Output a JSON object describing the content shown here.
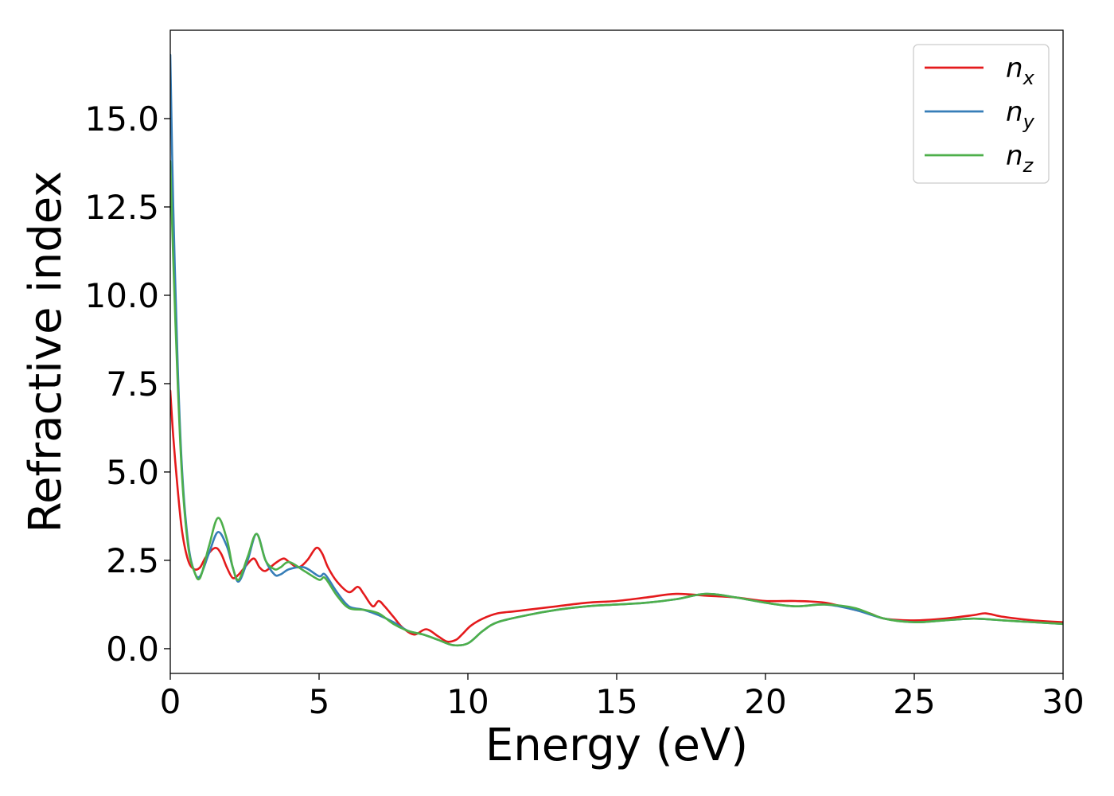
{
  "chart_data": {
    "type": "line",
    "xlabel": "Energy (eV)",
    "ylabel": "Refractive index",
    "xlim": [
      0,
      30
    ],
    "ylim": [
      -0.7,
      17.5
    ],
    "xticks": [
      0,
      5,
      10,
      15,
      20,
      25,
      30
    ],
    "xtick_labels": [
      "0",
      "5",
      "10",
      "15",
      "20",
      "25",
      "30"
    ],
    "yticks": [
      0,
      2.5,
      5,
      7.5,
      10,
      12.5,
      15
    ],
    "ytick_labels": [
      "0.0",
      "2.5",
      "5.0",
      "7.5",
      "10.0",
      "12.5",
      "15.0"
    ],
    "grid": false,
    "legend_position": "top-right",
    "series": [
      {
        "name": "n_x",
        "label_base": "n",
        "label_sub": "x",
        "color": "#e41a1c",
        "x": [
          0,
          0.1,
          0.25,
          0.4,
          0.6,
          0.8,
          1.0,
          1.2,
          1.5,
          1.7,
          1.9,
          2.1,
          2.3,
          2.5,
          2.8,
          3.0,
          3.2,
          3.5,
          3.8,
          4.0,
          4.3,
          4.6,
          4.9,
          5.1,
          5.3,
          5.6,
          6.0,
          6.3,
          6.5,
          6.8,
          7.0,
          7.2,
          7.5,
          7.8,
          8.2,
          8.6,
          9.0,
          9.3,
          9.6,
          9.8,
          10.1,
          10.5,
          11.0,
          11.5,
          12.0,
          13.0,
          14.0,
          15.0,
          16.0,
          17.0,
          18.0,
          19.0,
          20.0,
          21.0,
          22.0,
          23.0,
          23.5,
          24.0,
          25.0,
          26.0,
          27.0,
          27.4,
          28.0,
          29.0,
          30.0
        ],
        "values": [
          7.3,
          6.0,
          4.5,
          3.3,
          2.5,
          2.25,
          2.3,
          2.6,
          2.85,
          2.7,
          2.3,
          2.0,
          2.1,
          2.3,
          2.55,
          2.3,
          2.2,
          2.4,
          2.55,
          2.45,
          2.3,
          2.5,
          2.85,
          2.7,
          2.3,
          1.9,
          1.6,
          1.75,
          1.55,
          1.2,
          1.35,
          1.2,
          0.9,
          0.6,
          0.4,
          0.55,
          0.35,
          0.2,
          0.25,
          0.4,
          0.65,
          0.85,
          1.0,
          1.05,
          1.1,
          1.2,
          1.3,
          1.35,
          1.45,
          1.55,
          1.5,
          1.45,
          1.35,
          1.35,
          1.3,
          1.1,
          1.0,
          0.85,
          0.8,
          0.85,
          0.95,
          1.0,
          0.9,
          0.8,
          0.75
        ]
      },
      {
        "name": "n_y",
        "label_base": "n",
        "label_sub": "y",
        "color": "#377eb8",
        "x": [
          0,
          0.1,
          0.25,
          0.4,
          0.6,
          0.8,
          1.0,
          1.3,
          1.6,
          1.9,
          2.1,
          2.3,
          2.6,
          2.9,
          3.2,
          3.5,
          3.7,
          4.0,
          4.5,
          5.0,
          5.2,
          5.6,
          6.0,
          6.5,
          7.0,
          7.5,
          8.0,
          8.5,
          9.0,
          9.5,
          10.0,
          10.5,
          11.0,
          12.0,
          13.0,
          14.0,
          15.0,
          16.0,
          17.0,
          18.0,
          19.0,
          20.0,
          21.0,
          22.0,
          23.0,
          24.0,
          25.0,
          26.0,
          27.0,
          28.0,
          29.0,
          30.0
        ],
        "values": [
          16.8,
          12.5,
          8.0,
          5.0,
          3.0,
          2.2,
          2.05,
          2.7,
          3.3,
          2.9,
          2.3,
          1.9,
          2.5,
          3.25,
          2.5,
          2.1,
          2.1,
          2.25,
          2.3,
          2.05,
          2.1,
          1.6,
          1.2,
          1.1,
          0.95,
          0.75,
          0.5,
          0.4,
          0.25,
          0.1,
          0.15,
          0.5,
          0.75,
          0.95,
          1.1,
          1.2,
          1.25,
          1.3,
          1.4,
          1.55,
          1.45,
          1.3,
          1.2,
          1.25,
          1.1,
          0.85,
          0.75,
          0.8,
          0.85,
          0.8,
          0.75,
          0.7
        ]
      },
      {
        "name": "n_z",
        "label_base": "n",
        "label_sub": "z",
        "color": "#4daf4a",
        "x": [
          0,
          0.1,
          0.25,
          0.4,
          0.6,
          0.8,
          1.0,
          1.3,
          1.6,
          1.9,
          2.1,
          2.3,
          2.6,
          2.9,
          3.2,
          3.5,
          3.7,
          4.0,
          4.5,
          5.0,
          5.2,
          5.6,
          6.0,
          6.5,
          7.0,
          7.5,
          8.0,
          8.5,
          9.0,
          9.5,
          10.0,
          10.5,
          11.0,
          12.0,
          13.0,
          14.0,
          15.0,
          16.0,
          17.0,
          18.0,
          19.0,
          20.0,
          21.0,
          22.0,
          23.0,
          24.0,
          25.0,
          26.0,
          27.0,
          28.0,
          29.0,
          30.0
        ],
        "values": [
          13.8,
          11.0,
          7.5,
          4.8,
          2.9,
          2.2,
          2.0,
          2.9,
          3.7,
          3.1,
          2.3,
          1.95,
          2.6,
          3.25,
          2.5,
          2.25,
          2.3,
          2.45,
          2.2,
          1.95,
          2.0,
          1.5,
          1.15,
          1.1,
          1.0,
          0.7,
          0.5,
          0.4,
          0.25,
          0.1,
          0.15,
          0.5,
          0.75,
          0.95,
          1.1,
          1.2,
          1.25,
          1.3,
          1.4,
          1.55,
          1.45,
          1.3,
          1.2,
          1.25,
          1.15,
          0.85,
          0.75,
          0.8,
          0.85,
          0.8,
          0.75,
          0.7
        ]
      }
    ]
  }
}
